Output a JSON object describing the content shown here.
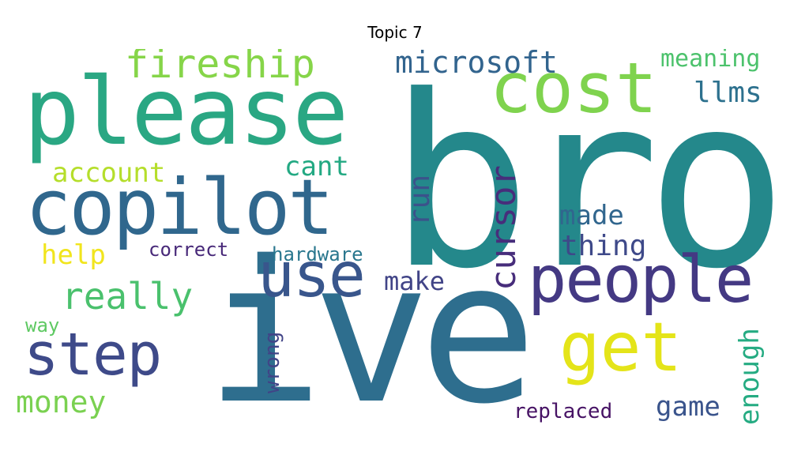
{
  "title": "Topic 7",
  "words": {
    "bro": {
      "text": "bro",
      "color": "#24888b"
    },
    "ive": {
      "text": "ive",
      "color": "#2e6e8e"
    },
    "please": {
      "text": "please",
      "color": "#2aa783"
    },
    "copilot": {
      "text": "copilot",
      "color": "#30678d"
    },
    "cost": {
      "text": "cost",
      "color": "#7fd34e"
    },
    "use": {
      "text": "use",
      "color": "#39568c"
    },
    "people": {
      "text": "people",
      "color": "#443983"
    },
    "get": {
      "text": "get",
      "color": "#e4e419"
    },
    "step": {
      "text": "step",
      "color": "#3e4a89"
    },
    "fireship": {
      "text": "fireship",
      "color": "#86d549"
    },
    "microsoft": {
      "text": "microsoft",
      "color": "#32648e"
    },
    "cursor": {
      "text": "cursor",
      "color": "#472d7b"
    },
    "really": {
      "text": "really",
      "color": "#4ac16d"
    },
    "meaning": {
      "text": "meaning",
      "color": "#4cc26c"
    },
    "llms": {
      "text": "llms",
      "color": "#2d718e"
    },
    "account": {
      "text": "account",
      "color": "#b5de2b"
    },
    "cant": {
      "text": "cant",
      "color": "#23a983"
    },
    "run": {
      "text": "run",
      "color": "#3b528b"
    },
    "made": {
      "text": "made",
      "color": "#31668e"
    },
    "thing": {
      "text": "thing",
      "color": "#3e4989"
    },
    "help": {
      "text": "help",
      "color": "#f1e51d"
    },
    "correct": {
      "text": "correct",
      "color": "#482979"
    },
    "hardware": {
      "text": "hardware",
      "color": "#2a778e"
    },
    "make": {
      "text": "make",
      "color": "#414487"
    },
    "way": {
      "text": "way",
      "color": "#5ec962"
    },
    "wrong": {
      "text": "wrong",
      "color": "#414487"
    },
    "money": {
      "text": "money",
      "color": "#7ad151"
    },
    "game": {
      "text": "game",
      "color": "#3a548c"
    },
    "enough": {
      "text": "enough",
      "color": "#25ab82"
    },
    "replaced": {
      "text": "replaced",
      "color": "#471365"
    }
  }
}
